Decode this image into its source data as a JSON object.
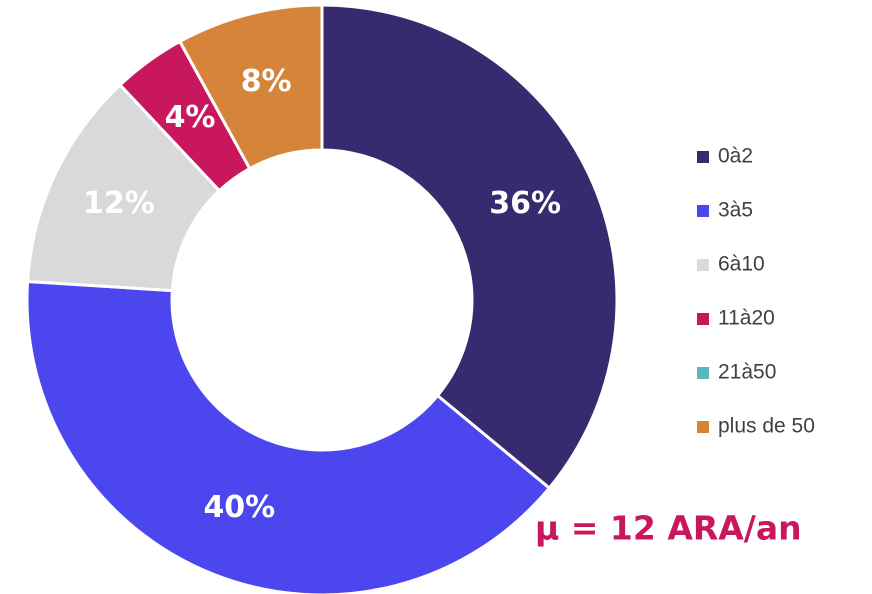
{
  "chart_data": {
    "type": "donut",
    "categories": [
      "0à2",
      "3à5",
      "6à10",
      "11à20",
      "21à50",
      "plus de 50"
    ],
    "values": [
      36,
      40,
      12,
      4,
      0,
      8
    ],
    "value_labels": [
      "36%",
      "40%",
      "12%",
      "4%",
      null,
      "8%"
    ],
    "colors": [
      "#372a6e",
      "#4b46ee",
      "#d9d9d9",
      "#c8175d",
      "#5ab8b8",
      "#d5843a"
    ],
    "legend": "right",
    "annotation": "μ = 12 ARA/an"
  }
}
